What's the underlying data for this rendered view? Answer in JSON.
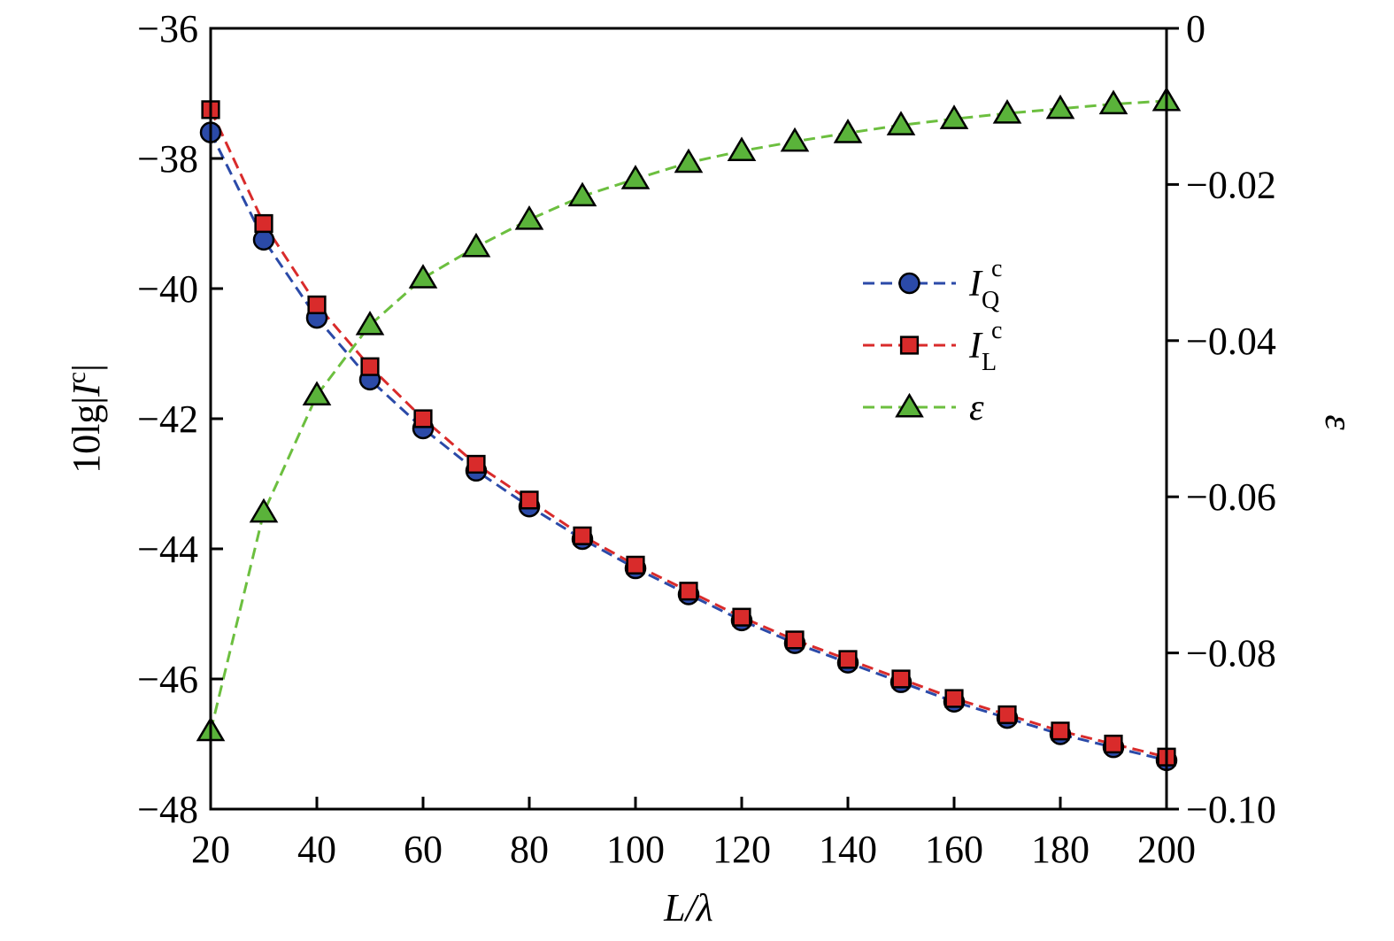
{
  "chart_data": {
    "type": "line",
    "x": [
      20,
      30,
      40,
      50,
      60,
      70,
      80,
      90,
      100,
      110,
      120,
      130,
      140,
      150,
      160,
      170,
      180,
      190,
      200
    ],
    "xlabel": "L/λ",
    "ylabel_left": "10lg|I^c|",
    "ylabel_right": "ε",
    "xlim": [
      20,
      200
    ],
    "ylim_left": [
      -48,
      -36
    ],
    "ylim_right": [
      -0.1,
      0
    ],
    "xticks": [
      20,
      40,
      60,
      80,
      100,
      120,
      140,
      160,
      180,
      200
    ],
    "xtick_labels": [
      "20",
      "40",
      "60",
      "80",
      "100",
      "120",
      "140",
      "160",
      "180",
      "200"
    ],
    "yticks_left": [
      -36,
      -38,
      -40,
      -42,
      -44,
      -46,
      -48
    ],
    "ytick_labels_left": [
      "−36",
      "−38",
      "−40",
      "−42",
      "−44",
      "−46",
      "−48"
    ],
    "yticks_right": [
      0,
      -0.02,
      -0.04,
      -0.06,
      -0.08,
      -0.1
    ],
    "ytick_labels_right": [
      "0",
      "−0.02",
      "−0.04",
      "−0.06",
      "−0.08",
      "−0.10"
    ],
    "legend_position": "center-right",
    "series": [
      {
        "name": "I_Q^c",
        "legend_main": "I",
        "legend_sub": "Q",
        "legend_sup": "c",
        "axis": "left",
        "marker": "circle",
        "color": "#2b4aa8",
        "line_color": "#2b4aa8",
        "values": [
          -37.6,
          -39.25,
          -40.45,
          -41.4,
          -42.15,
          -42.8,
          -43.35,
          -43.85,
          -44.3,
          -44.7,
          -45.1,
          -45.45,
          -45.75,
          -46.05,
          -46.35,
          -46.6,
          -46.85,
          -47.05,
          -47.25
        ]
      },
      {
        "name": "I_L^c",
        "legend_main": "I",
        "legend_sub": "L",
        "legend_sup": "c",
        "axis": "left",
        "marker": "square",
        "color": "#d92b2b",
        "line_color": "#d92b2b",
        "values": [
          -37.25,
          -39.0,
          -40.25,
          -41.2,
          -42.0,
          -42.7,
          -43.25,
          -43.8,
          -44.25,
          -44.65,
          -45.05,
          -45.4,
          -45.7,
          -46.0,
          -46.3,
          -46.55,
          -46.8,
          -47.0,
          -47.2
        ]
      },
      {
        "name": "ε",
        "legend_main": "ε",
        "legend_sub": "",
        "legend_sup": "",
        "axis": "right",
        "marker": "triangle",
        "color": "#5ab33a",
        "line_color": "#6cbf3f",
        "values": [
          -0.09,
          -0.062,
          -0.047,
          -0.038,
          -0.032,
          -0.028,
          -0.0245,
          -0.0215,
          -0.0193,
          -0.0172,
          -0.0157,
          -0.0145,
          -0.0134,
          -0.0124,
          -0.0116,
          -0.0109,
          -0.0103,
          -0.0097,
          -0.0093
        ]
      }
    ]
  }
}
